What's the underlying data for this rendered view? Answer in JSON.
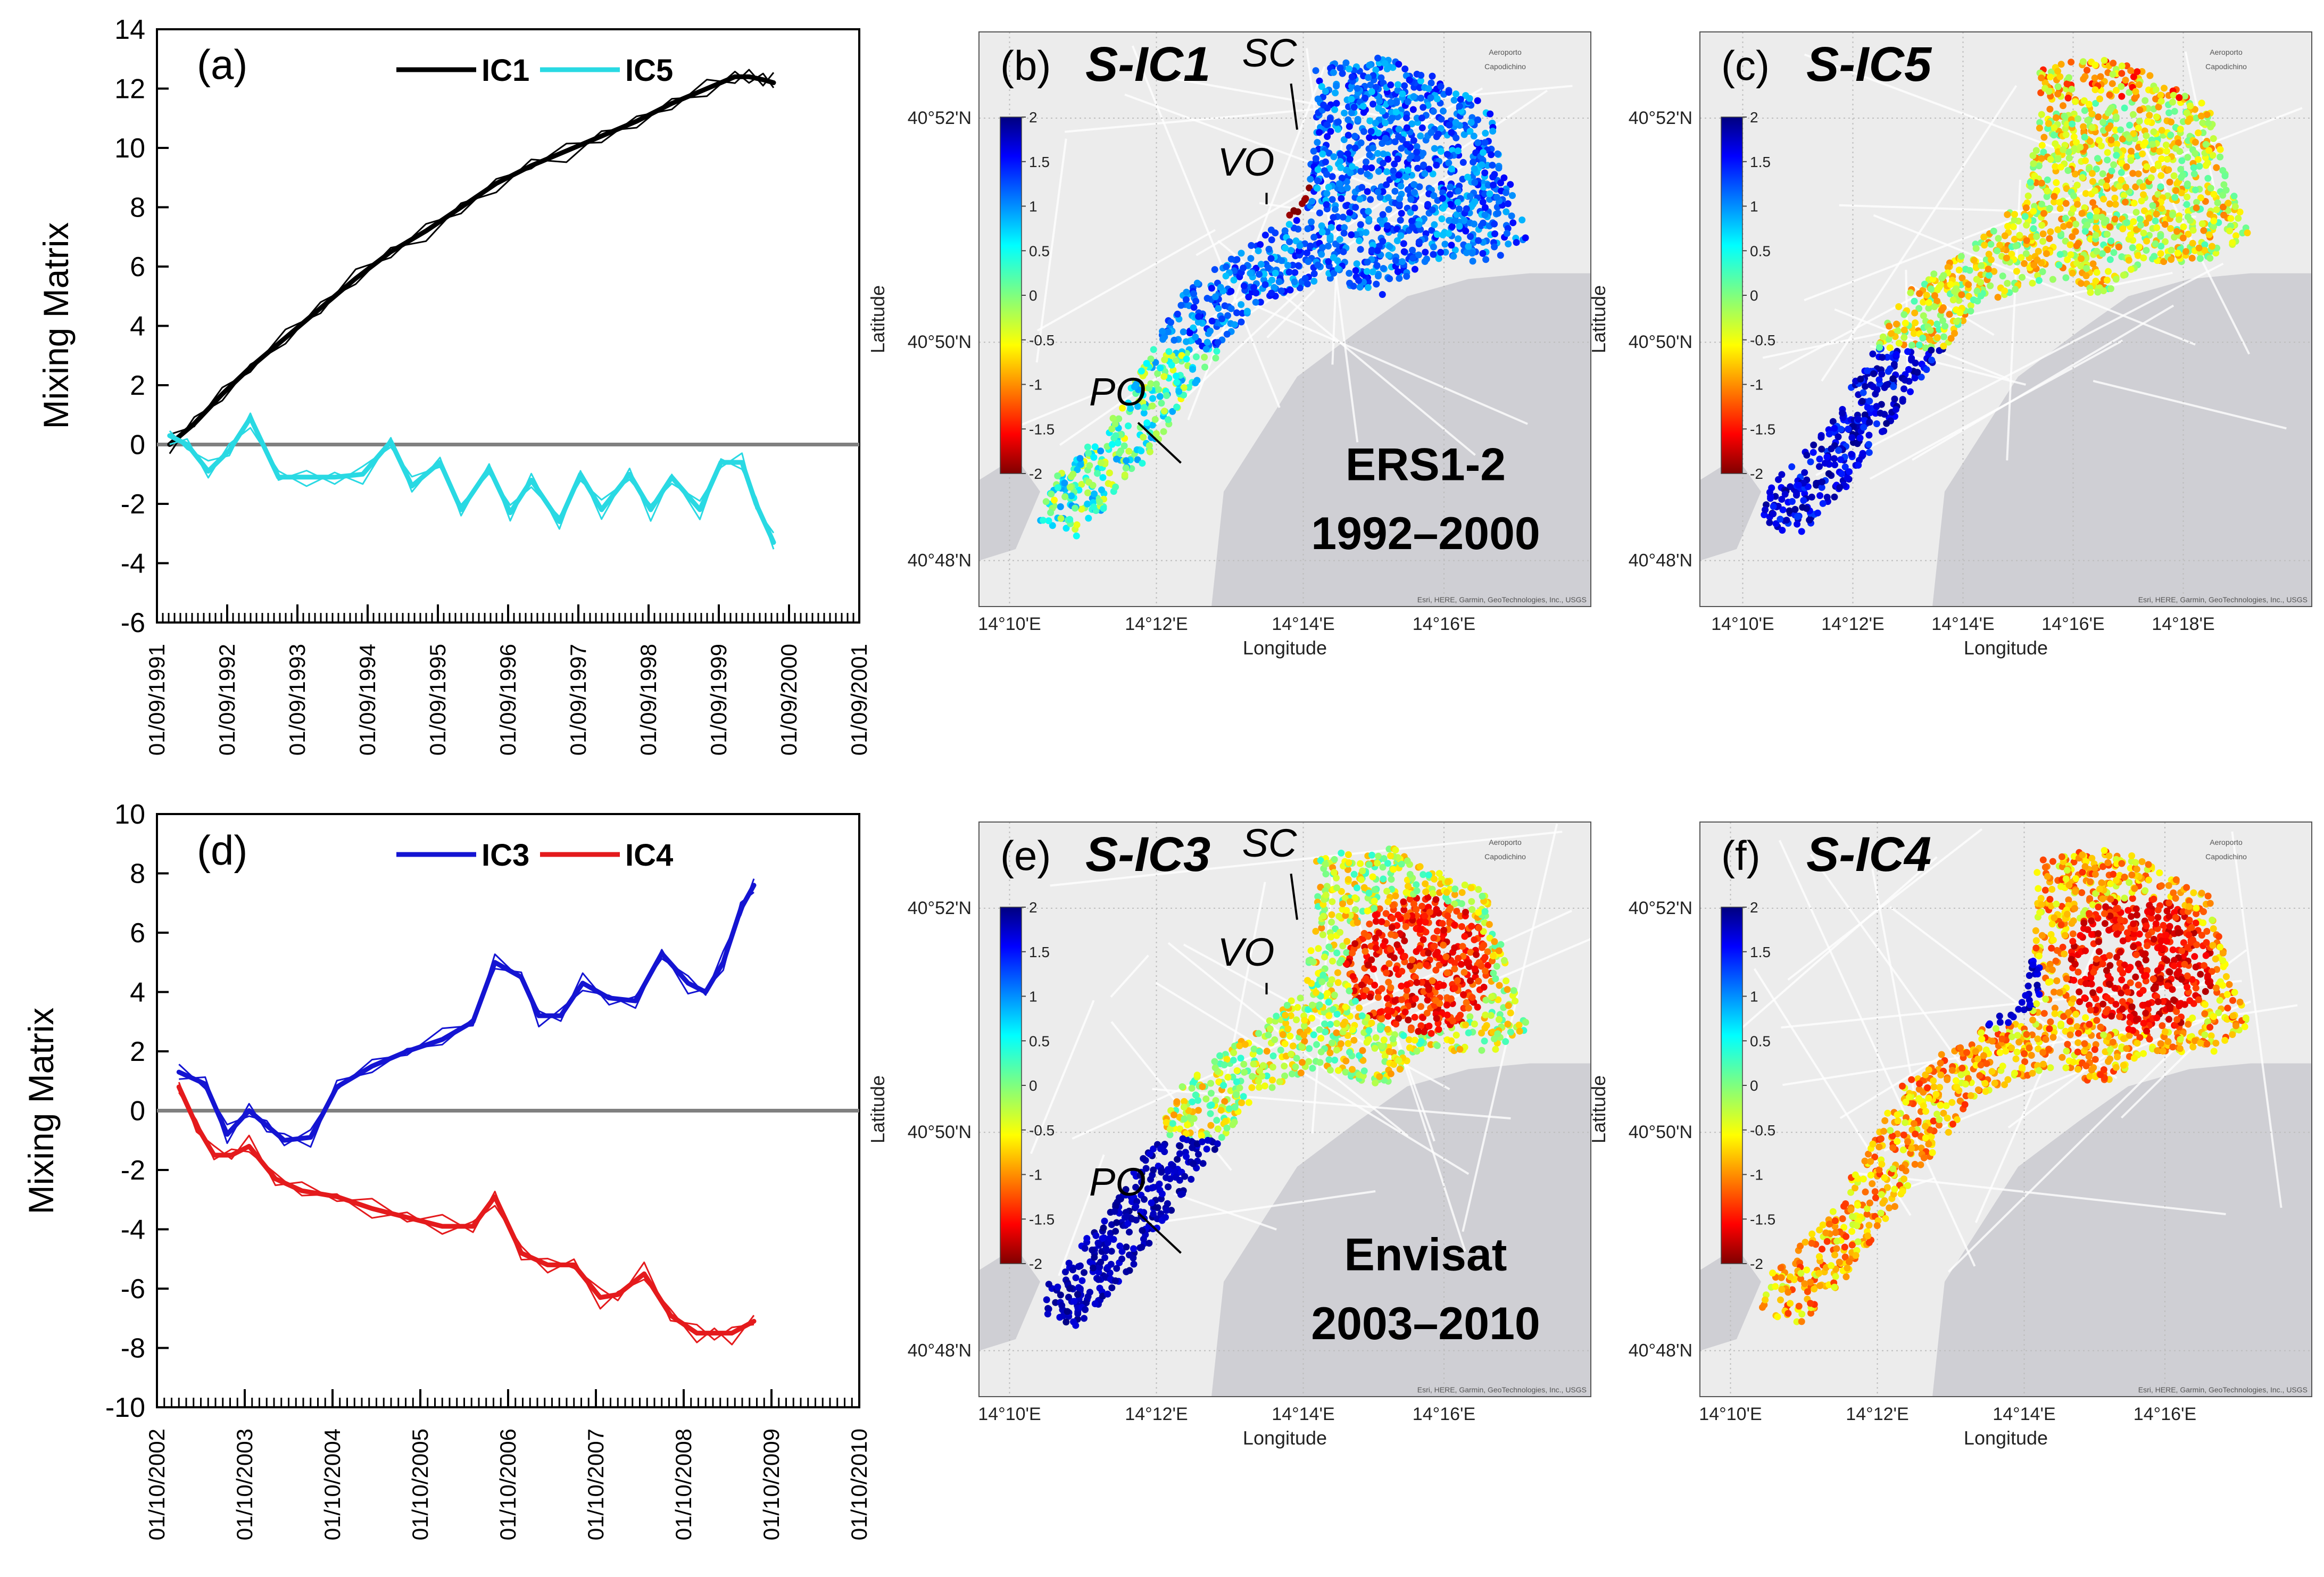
{
  "colors": {
    "IC1": "#000000",
    "IC5": "#29d9e3",
    "IC3": "#1414d2",
    "IC4": "#e41a1c",
    "zero_line": "#808080",
    "sea": "#cfcfd4",
    "land": "#ececec"
  },
  "chart_data": [
    {
      "id": "a",
      "type": "line",
      "panel_label": "(a)",
      "ylabel": "Mixing Matrix",
      "ylim": [
        -6,
        14
      ],
      "yticks": [
        "-6",
        "-4",
        "-2",
        "0",
        "2",
        "4",
        "6",
        "8",
        "10",
        "12",
        "14"
      ],
      "xticks": [
        "01/09/1991",
        "01/09/1992",
        "01/09/1993",
        "01/09/1994",
        "01/09/1995",
        "01/09/1996",
        "01/09/1997",
        "01/09/1998",
        "01/09/1999",
        "01/09/2000",
        "01/09/2001"
      ],
      "xlim": [
        1991.67,
        2001.67
      ],
      "series": [
        {
          "name": "IC1",
          "color_key": "IC1",
          "x": [
            1991.85,
            1992.2,
            1992.6,
            1993.0,
            1993.5,
            1994.0,
            1994.5,
            1995.0,
            1995.5,
            1996.0,
            1996.5,
            1997.0,
            1997.5,
            1998.0,
            1998.5,
            1999.0,
            1999.5,
            1999.9,
            2000.1,
            2000.3,
            2000.45
          ],
          "y": [
            0.0,
            0.7,
            1.7,
            2.6,
            3.6,
            4.6,
            5.6,
            6.5,
            7.2,
            8.0,
            8.8,
            9.4,
            9.9,
            10.4,
            10.9,
            11.5,
            12.0,
            12.4,
            12.4,
            12.3,
            12.2
          ]
        },
        {
          "name": "IC5",
          "color_key": "IC5",
          "x": [
            1991.85,
            1992.1,
            1992.4,
            1992.7,
            1993.0,
            1993.4,
            1993.8,
            1994.2,
            1994.6,
            1995.0,
            1995.3,
            1995.7,
            1996.0,
            1996.4,
            1996.7,
            1997.0,
            1997.4,
            1997.7,
            1998.0,
            1998.4,
            1998.7,
            1999.0,
            1999.4,
            1999.7,
            2000.0,
            2000.2,
            2000.45
          ],
          "y": [
            0.3,
            0.0,
            -0.9,
            -0.2,
            0.9,
            -1.1,
            -1.1,
            -1.1,
            -1.0,
            0.1,
            -1.4,
            -0.6,
            -2.2,
            -0.8,
            -2.3,
            -1.2,
            -2.6,
            -1.0,
            -2.2,
            -1.0,
            -2.2,
            -1.1,
            -2.2,
            -0.6,
            -0.6,
            -2.0,
            -3.3
          ]
        }
      ]
    },
    {
      "id": "d",
      "type": "line",
      "panel_label": "(d)",
      "ylabel": "Mixing Matrix",
      "ylim": [
        -10,
        10
      ],
      "yticks": [
        "-10",
        "-8",
        "-6",
        "-4",
        "-2",
        "0",
        "2",
        "4",
        "6",
        "8",
        "10"
      ],
      "xticks": [
        "01/10/2002",
        "01/10/2003",
        "01/10/2004",
        "01/10/2005",
        "01/10/2006",
        "01/10/2007",
        "01/10/2008",
        "01/10/2009",
        "01/10/2010"
      ],
      "xlim": [
        2002.75,
        2010.75
      ],
      "series": [
        {
          "name": "IC3",
          "color_key": "IC3",
          "x": [
            2003.0,
            2003.3,
            2003.55,
            2003.8,
            2004.0,
            2004.2,
            2004.5,
            2004.8,
            2005.2,
            2005.6,
            2006.0,
            2006.35,
            2006.6,
            2006.9,
            2007.1,
            2007.35,
            2007.6,
            2007.9,
            2008.2,
            2008.5,
            2008.8,
            2009.0,
            2009.2,
            2009.4,
            2009.55
          ],
          "y": [
            1.3,
            0.9,
            -0.8,
            0.0,
            -0.5,
            -1.0,
            -0.9,
            0.8,
            1.5,
            2.0,
            2.4,
            3.0,
            5.0,
            4.5,
            3.2,
            3.2,
            4.3,
            3.8,
            3.7,
            5.3,
            4.3,
            4.0,
            5.0,
            6.8,
            7.6
          ]
        },
        {
          "name": "IC4",
          "color_key": "IC4",
          "x": [
            2003.0,
            2003.2,
            2003.4,
            2003.6,
            2003.8,
            2004.1,
            2004.4,
            2004.8,
            2005.2,
            2005.6,
            2006.0,
            2006.35,
            2006.6,
            2006.9,
            2007.2,
            2007.5,
            2007.8,
            2008.0,
            2008.3,
            2008.6,
            2008.9,
            2009.1,
            2009.3,
            2009.55
          ],
          "y": [
            0.8,
            -0.5,
            -1.5,
            -1.5,
            -1.2,
            -2.3,
            -2.7,
            -2.9,
            -3.3,
            -3.6,
            -3.9,
            -3.9,
            -2.9,
            -4.8,
            -5.2,
            -5.2,
            -6.3,
            -6.2,
            -5.5,
            -6.9,
            -7.5,
            -7.5,
            -7.5,
            -7.1
          ]
        }
      ]
    }
  ],
  "maps": {
    "lat_label": "Latitude",
    "lon_label": "Longitude",
    "lat_ticks": [
      "40°52'N",
      "40°50'N",
      "40°48'N"
    ],
    "lon_ticks_short": [
      "14°10'E",
      "14°12'E",
      "14°14'E",
      "14°16'E"
    ],
    "lon_ticks_long": [
      "14°10'E",
      "14°12'E",
      "14°14'E",
      "14°16'E",
      "14°18'E"
    ],
    "colorbar_ticks": [
      "2",
      "1.5",
      "1",
      "0.5",
      "0",
      "-0.5",
      "-1",
      "-1.5",
      "-2"
    ],
    "airport_label_1": "Aeroporto",
    "airport_label_2": "Capodichino",
    "credit": "Esri, HERE, Garmin, GeoTechnologies, Inc., USGS",
    "site_SC": "SC",
    "site_VO": "VO",
    "site_PO": "PO",
    "panels": [
      {
        "id": "b",
        "letter": "(b)",
        "title": "S-IC1",
        "sensor": "ERS1-2",
        "period": "1992–2000"
      },
      {
        "id": "c",
        "letter": "(c)",
        "title": "S-IC5"
      },
      {
        "id": "e",
        "letter": "(e)",
        "title": "S-IC3",
        "sensor": "Envisat",
        "period": "2003–2010"
      },
      {
        "id": "f",
        "letter": "(f)",
        "title": "S-IC4"
      }
    ]
  }
}
